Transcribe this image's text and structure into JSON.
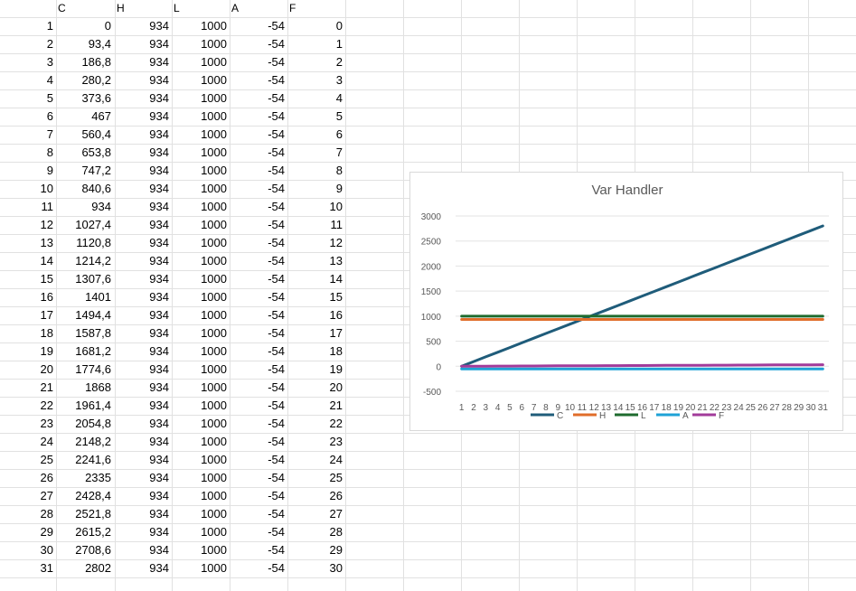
{
  "sheet": {
    "columns": [
      "C",
      "H",
      "L",
      "A",
      "F"
    ],
    "rows": [
      {
        "n": "1",
        "c": "0",
        "h": "934",
        "l": "1000",
        "a": "-54",
        "f": "0"
      },
      {
        "n": "2",
        "c": "93,4",
        "h": "934",
        "l": "1000",
        "a": "-54",
        "f": "1"
      },
      {
        "n": "3",
        "c": "186,8",
        "h": "934",
        "l": "1000",
        "a": "-54",
        "f": "2"
      },
      {
        "n": "4",
        "c": "280,2",
        "h": "934",
        "l": "1000",
        "a": "-54",
        "f": "3"
      },
      {
        "n": "5",
        "c": "373,6",
        "h": "934",
        "l": "1000",
        "a": "-54",
        "f": "4"
      },
      {
        "n": "6",
        "c": "467",
        "h": "934",
        "l": "1000",
        "a": "-54",
        "f": "5"
      },
      {
        "n": "7",
        "c": "560,4",
        "h": "934",
        "l": "1000",
        "a": "-54",
        "f": "6"
      },
      {
        "n": "8",
        "c": "653,8",
        "h": "934",
        "l": "1000",
        "a": "-54",
        "f": "7"
      },
      {
        "n": "9",
        "c": "747,2",
        "h": "934",
        "l": "1000",
        "a": "-54",
        "f": "8"
      },
      {
        "n": "10",
        "c": "840,6",
        "h": "934",
        "l": "1000",
        "a": "-54",
        "f": "9"
      },
      {
        "n": "11",
        "c": "934",
        "h": "934",
        "l": "1000",
        "a": "-54",
        "f": "10"
      },
      {
        "n": "12",
        "c": "1027,4",
        "h": "934",
        "l": "1000",
        "a": "-54",
        "f": "11"
      },
      {
        "n": "13",
        "c": "1120,8",
        "h": "934",
        "l": "1000",
        "a": "-54",
        "f": "12"
      },
      {
        "n": "14",
        "c": "1214,2",
        "h": "934",
        "l": "1000",
        "a": "-54",
        "f": "13"
      },
      {
        "n": "15",
        "c": "1307,6",
        "h": "934",
        "l": "1000",
        "a": "-54",
        "f": "14"
      },
      {
        "n": "16",
        "c": "1401",
        "h": "934",
        "l": "1000",
        "a": "-54",
        "f": "15"
      },
      {
        "n": "17",
        "c": "1494,4",
        "h": "934",
        "l": "1000",
        "a": "-54",
        "f": "16"
      },
      {
        "n": "18",
        "c": "1587,8",
        "h": "934",
        "l": "1000",
        "a": "-54",
        "f": "17"
      },
      {
        "n": "19",
        "c": "1681,2",
        "h": "934",
        "l": "1000",
        "a": "-54",
        "f": "18"
      },
      {
        "n": "20",
        "c": "1774,6",
        "h": "934",
        "l": "1000",
        "a": "-54",
        "f": "19"
      },
      {
        "n": "21",
        "c": "1868",
        "h": "934",
        "l": "1000",
        "a": "-54",
        "f": "20"
      },
      {
        "n": "22",
        "c": "1961,4",
        "h": "934",
        "l": "1000",
        "a": "-54",
        "f": "21"
      },
      {
        "n": "23",
        "c": "2054,8",
        "h": "934",
        "l": "1000",
        "a": "-54",
        "f": "22"
      },
      {
        "n": "24",
        "c": "2148,2",
        "h": "934",
        "l": "1000",
        "a": "-54",
        "f": "23"
      },
      {
        "n": "25",
        "c": "2241,6",
        "h": "934",
        "l": "1000",
        "a": "-54",
        "f": "24"
      },
      {
        "n": "26",
        "c": "2335",
        "h": "934",
        "l": "1000",
        "a": "-54",
        "f": "25"
      },
      {
        "n": "27",
        "c": "2428,4",
        "h": "934",
        "l": "1000",
        "a": "-54",
        "f": "26"
      },
      {
        "n": "28",
        "c": "2521,8",
        "h": "934",
        "l": "1000",
        "a": "-54",
        "f": "27"
      },
      {
        "n": "29",
        "c": "2615,2",
        "h": "934",
        "l": "1000",
        "a": "-54",
        "f": "28"
      },
      {
        "n": "30",
        "c": "2708,6",
        "h": "934",
        "l": "1000",
        "a": "-54",
        "f": "29"
      },
      {
        "n": "31",
        "c": "2802",
        "h": "934",
        "l": "1000",
        "a": "-54",
        "f": "30"
      }
    ]
  },
  "chart_data": {
    "type": "line",
    "title": "Var Handler",
    "xlabel": "",
    "ylabel": "",
    "ylim": [
      -500,
      3000
    ],
    "yticks": [
      "3000",
      "2500",
      "2000",
      "1500",
      "1000",
      "500",
      "0",
      "-500"
    ],
    "ytick_values": [
      3000,
      2500,
      2000,
      1500,
      1000,
      500,
      0,
      -500
    ],
    "x": [
      1,
      2,
      3,
      4,
      5,
      6,
      7,
      8,
      9,
      10,
      11,
      12,
      13,
      14,
      15,
      16,
      17,
      18,
      19,
      20,
      21,
      22,
      23,
      24,
      25,
      26,
      27,
      28,
      29,
      30,
      31
    ],
    "legend_placement": "bottom",
    "grid": true,
    "series": [
      {
        "name": "C",
        "color": "#1f5c7a",
        "values": [
          0,
          93.4,
          186.8,
          280.2,
          373.6,
          467,
          560.4,
          653.8,
          747.2,
          840.6,
          934,
          1027.4,
          1120.8,
          1214.2,
          1307.6,
          1401,
          1494.4,
          1587.8,
          1681.2,
          1774.6,
          1868,
          1961.4,
          2054.8,
          2148.2,
          2241.6,
          2335,
          2428.4,
          2521.8,
          2615.2,
          2708.6,
          2802
        ]
      },
      {
        "name": "H",
        "color": "#e06d2a",
        "values": [
          934,
          934,
          934,
          934,
          934,
          934,
          934,
          934,
          934,
          934,
          934,
          934,
          934,
          934,
          934,
          934,
          934,
          934,
          934,
          934,
          934,
          934,
          934,
          934,
          934,
          934,
          934,
          934,
          934,
          934,
          934
        ]
      },
      {
        "name": "L",
        "color": "#1e6b2e",
        "values": [
          1000,
          1000,
          1000,
          1000,
          1000,
          1000,
          1000,
          1000,
          1000,
          1000,
          1000,
          1000,
          1000,
          1000,
          1000,
          1000,
          1000,
          1000,
          1000,
          1000,
          1000,
          1000,
          1000,
          1000,
          1000,
          1000,
          1000,
          1000,
          1000,
          1000,
          1000
        ]
      },
      {
        "name": "A",
        "color": "#1ea2d6",
        "values": [
          -54,
          -54,
          -54,
          -54,
          -54,
          -54,
          -54,
          -54,
          -54,
          -54,
          -54,
          -54,
          -54,
          -54,
          -54,
          -54,
          -54,
          -54,
          -54,
          -54,
          -54,
          -54,
          -54,
          -54,
          -54,
          -54,
          -54,
          -54,
          -54,
          -54,
          -54
        ]
      },
      {
        "name": "F",
        "color": "#a23b9a",
        "values": [
          0,
          1,
          2,
          3,
          4,
          5,
          6,
          7,
          8,
          9,
          10,
          11,
          12,
          13,
          14,
          15,
          16,
          17,
          18,
          19,
          20,
          21,
          22,
          23,
          24,
          25,
          26,
          27,
          28,
          29,
          30
        ]
      }
    ]
  }
}
